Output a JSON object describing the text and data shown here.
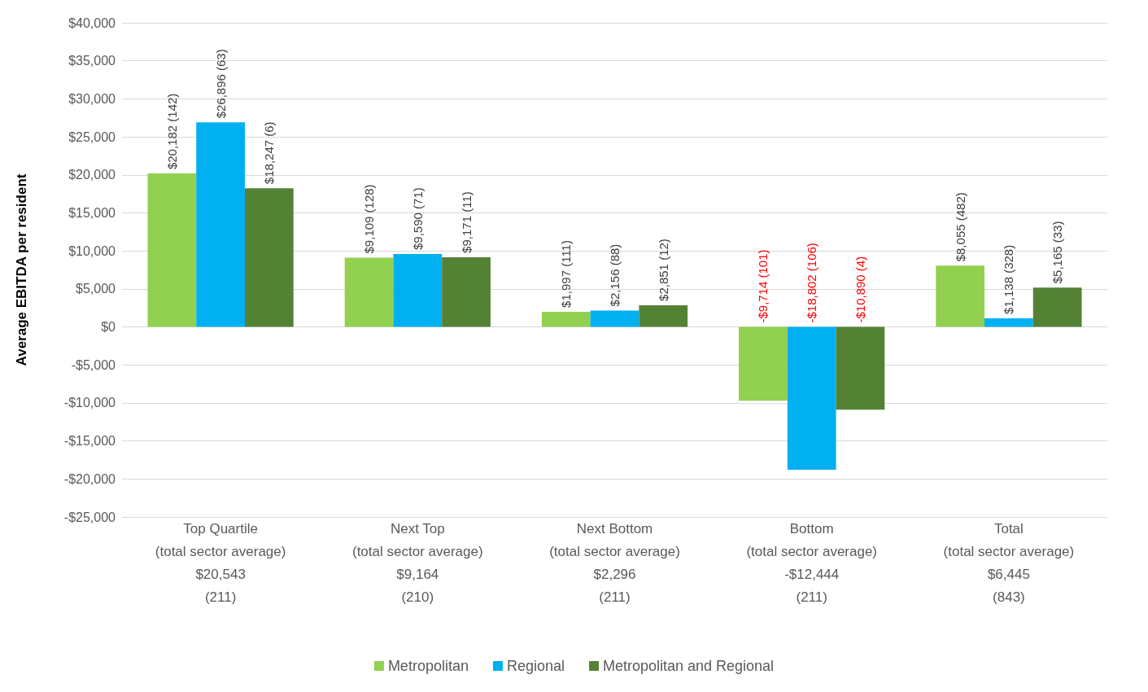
{
  "chart_data": {
    "type": "bar",
    "categories": [
      "Top Quartile\n(total sector average)\n$20,543\n(211)",
      "Next Top\n(total sector average)\n$9,164\n(210)",
      "Next Bottom\n(total sector average)\n$2,296\n(211)",
      "Bottom\n(total sector average)\n-$12,444\n(211)",
      "Total\n(total sector average)\n$6,445\n(843)"
    ],
    "series": [
      {
        "name": "Metropolitan",
        "color": "#92d050",
        "values": [
          20182,
          9109,
          1997,
          -9714,
          8055
        ],
        "value_labels": [
          "$20,182 (142)",
          "$9,109 (128)",
          "$1,997 (111)",
          "-$9,714 (101)",
          "$8,055 (482)"
        ]
      },
      {
        "name": "Regional",
        "color": "#00b0f0",
        "values": [
          26896,
          9590,
          2156,
          -18802,
          1138
        ],
        "value_labels": [
          "$26,896 (63)",
          "$9,590 (71)",
          "$2,156 (88)",
          "-$18,802 (106)",
          "$1,138 (328)"
        ]
      },
      {
        "name": "Metropolitan and Regional",
        "color": "#548235",
        "values": [
          18247,
          9171,
          2851,
          -10890,
          5165
        ],
        "value_labels": [
          "$18,247 (6)",
          "$9,171 (11)",
          "$2,851 (12)",
          "-$10,890 (4)",
          "$5,165 (33)"
        ]
      }
    ],
    "ylabel": "Average EBITDA per resident",
    "ylim": [
      -25000,
      40000
    ],
    "yticks": [
      {
        "value": -25000,
        "label": "-$25,000"
      },
      {
        "value": -20000,
        "label": "-$20,000"
      },
      {
        "value": -15000,
        "label": "-$15,000"
      },
      {
        "value": -10000,
        "label": "-$10,000"
      },
      {
        "value": -5000,
        "label": "-$5,000"
      },
      {
        "value": 0,
        "label": "$0"
      },
      {
        "value": 5000,
        "label": "$5,000"
      },
      {
        "value": 10000,
        "label": "$10,000"
      },
      {
        "value": 15000,
        "label": "$15,000"
      },
      {
        "value": 20000,
        "label": "$20,000"
      },
      {
        "value": 25000,
        "label": "$25,000"
      },
      {
        "value": 30000,
        "label": "$30,000"
      },
      {
        "value": 35000,
        "label": "$35,000"
      },
      {
        "value": 40000,
        "label": "$40,000"
      }
    ],
    "grid": "y",
    "legend": "bottom"
  }
}
